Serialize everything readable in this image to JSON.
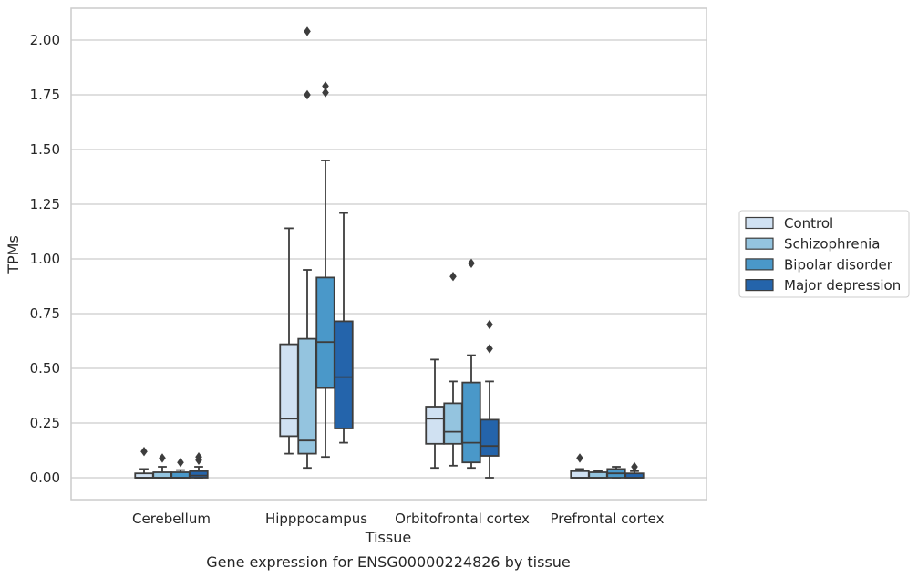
{
  "chart_data": {
    "type": "box",
    "caption": "Gene expression for ENSG00000224826 by tissue",
    "xlabel": "Tissue",
    "ylabel": "TPMs",
    "ylim": [
      -0.1,
      2.15
    ],
    "yticks": [
      0.0,
      0.25,
      0.5,
      0.75,
      1.0,
      1.25,
      1.5,
      1.75,
      2.0
    ],
    "ytick_labels": [
      "0.00",
      "0.25",
      "0.50",
      "0.75",
      "1.00",
      "1.25",
      "1.50",
      "1.75",
      "2.00"
    ],
    "grid": true,
    "legend_position": "right",
    "categories": [
      "Cerebellum",
      "Hipppocampus",
      "Orbitofrontal cortex",
      "Prefrontal cortex"
    ],
    "series": [
      {
        "name": "Control",
        "color": "#d0e1f2",
        "boxes": [
          {
            "q1": 0.0,
            "median": 0.0,
            "q3": 0.02,
            "whisker_low": 0.0,
            "whisker_high": 0.04,
            "outliers": [
              0.12
            ]
          },
          {
            "q1": 0.19,
            "median": 0.27,
            "q3": 0.61,
            "whisker_low": 0.11,
            "whisker_high": 1.14,
            "outliers": []
          },
          {
            "q1": 0.155,
            "median": 0.27,
            "q3": 0.325,
            "whisker_low": 0.045,
            "whisker_high": 0.54,
            "outliers": []
          },
          {
            "q1": 0.0,
            "median": 0.0,
            "q3": 0.03,
            "whisker_low": 0.0,
            "whisker_high": 0.04,
            "outliers": [
              0.09
            ]
          }
        ]
      },
      {
        "name": "Schizophrenia",
        "color": "#94c4df",
        "boxes": [
          {
            "q1": 0.0,
            "median": 0.0,
            "q3": 0.025,
            "whisker_low": 0.0,
            "whisker_high": 0.05,
            "outliers": [
              0.09
            ]
          },
          {
            "q1": 0.11,
            "median": 0.17,
            "q3": 0.635,
            "whisker_low": 0.045,
            "whisker_high": 0.95,
            "outliers": [
              1.75,
              2.04
            ]
          },
          {
            "q1": 0.155,
            "median": 0.21,
            "q3": 0.34,
            "whisker_low": 0.055,
            "whisker_high": 0.44,
            "outliers": [
              0.92
            ]
          },
          {
            "q1": 0.0,
            "median": 0.0,
            "q3": 0.025,
            "whisker_low": 0.0,
            "whisker_high": 0.03,
            "outliers": []
          }
        ]
      },
      {
        "name": "Bipolar disorder",
        "color": "#4a98c9",
        "boxes": [
          {
            "q1": 0.0,
            "median": 0.0,
            "q3": 0.025,
            "whisker_low": 0.0,
            "whisker_high": 0.035,
            "outliers": [
              0.07
            ]
          },
          {
            "q1": 0.41,
            "median": 0.62,
            "q3": 0.915,
            "whisker_low": 0.095,
            "whisker_high": 1.45,
            "outliers": [
              1.76,
              1.79
            ]
          },
          {
            "q1": 0.07,
            "median": 0.16,
            "q3": 0.435,
            "whisker_low": 0.045,
            "whisker_high": 0.56,
            "outliers": [
              0.98
            ]
          },
          {
            "q1": 0.0,
            "median": 0.02,
            "q3": 0.04,
            "whisker_low": 0.0,
            "whisker_high": 0.05,
            "outliers": []
          }
        ]
      },
      {
        "name": "Major depression",
        "color": "#2464ab",
        "boxes": [
          {
            "q1": 0.0,
            "median": 0.01,
            "q3": 0.03,
            "whisker_low": 0.0,
            "whisker_high": 0.05,
            "outliers": [
              0.08,
              0.095
            ]
          },
          {
            "q1": 0.225,
            "median": 0.46,
            "q3": 0.715,
            "whisker_low": 0.16,
            "whisker_high": 1.21,
            "outliers": []
          },
          {
            "q1": 0.1,
            "median": 0.145,
            "q3": 0.265,
            "whisker_low": 0.0,
            "whisker_high": 0.44,
            "outliers": [
              0.59,
              0.7
            ]
          },
          {
            "q1": 0.0,
            "median": 0.0,
            "q3": 0.02,
            "whisker_low": 0.0,
            "whisker_high": 0.03,
            "outliers": [
              0.05
            ]
          }
        ]
      }
    ]
  }
}
